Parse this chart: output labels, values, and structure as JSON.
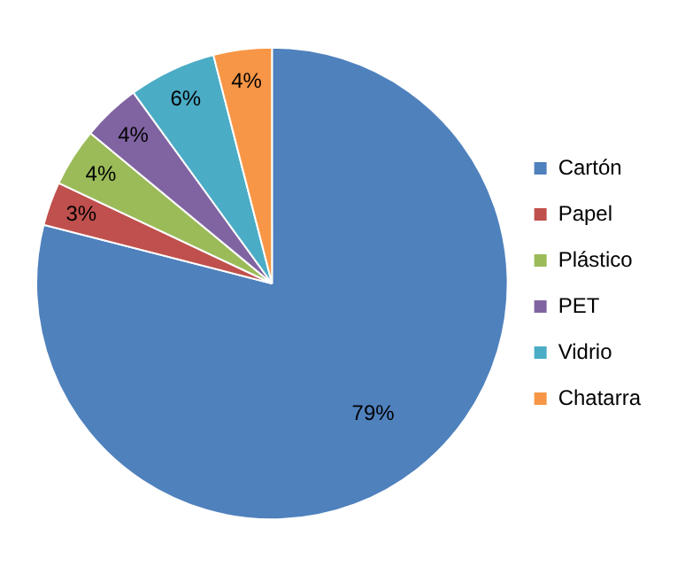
{
  "chart_data": {
    "type": "pie",
    "categories": [
      "Cartón",
      "Papel",
      "Plástico",
      "PET",
      "Vidrio",
      "Chatarra"
    ],
    "values": [
      79,
      3,
      4,
      4,
      6,
      4
    ],
    "colors": [
      "#4f81bd",
      "#c0504d",
      "#9bbb59",
      "#8064a2",
      "#4bacc6",
      "#f79646"
    ],
    "value_labels": [
      "79%",
      "3%",
      "4%",
      "4%",
      "6%",
      "4%"
    ],
    "legend": "right"
  }
}
